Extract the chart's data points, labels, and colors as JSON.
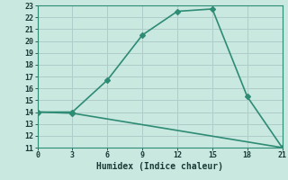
{
  "xlabel": "Humidex (Indice chaleur)",
  "line1_x": [
    0,
    3,
    6,
    9,
    12,
    15,
    18,
    21
  ],
  "line1_y": [
    14,
    14,
    16.7,
    20.5,
    22.5,
    22.7,
    15.3,
    11.0
  ],
  "line2_x": [
    0,
    3,
    21
  ],
  "line2_y": [
    14,
    13.9,
    11.0
  ],
  "color": "#2e8b74",
  "bg_color": "#c8e8e0",
  "grid_color": "#b0ccc8",
  "xlim": [
    0,
    21
  ],
  "ylim": [
    11,
    23
  ],
  "xticks": [
    0,
    3,
    6,
    9,
    12,
    15,
    18,
    21
  ],
  "yticks": [
    11,
    12,
    13,
    14,
    15,
    16,
    17,
    18,
    19,
    20,
    21,
    22,
    23
  ],
  "marker": "D",
  "markersize": 3,
  "linewidth": 1.2,
  "tick_color": "#2e5e58",
  "label_color": "#1a3a36",
  "tick_fontsize": 6.0,
  "xlabel_fontsize": 7.0
}
